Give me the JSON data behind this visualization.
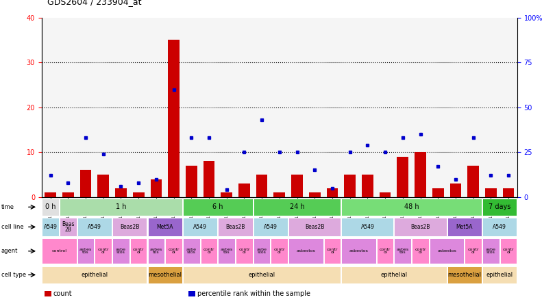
{
  "title": "GDS2604 / 233904_at",
  "samples": [
    "GSM139646",
    "GSM139660",
    "GSM139640",
    "GSM139647",
    "GSM139654",
    "GSM139661",
    "GSM139760",
    "GSM139669",
    "GSM139641",
    "GSM139648",
    "GSM139655",
    "GSM139663",
    "GSM139643",
    "GSM139653",
    "GSM139656",
    "GSM139657",
    "GSM139664",
    "GSM139644",
    "GSM139645",
    "GSM139652",
    "GSM139659",
    "GSM139666",
    "GSM139667",
    "GSM139668",
    "GSM139761",
    "GSM139642",
    "GSM139649"
  ],
  "counts": [
    1,
    1,
    6,
    5,
    2,
    1,
    4,
    35,
    7,
    8,
    1,
    3,
    5,
    1,
    5,
    1,
    2,
    5,
    5,
    1,
    9,
    10,
    2,
    3,
    7,
    2,
    2
  ],
  "percentiles": [
    12,
    8,
    33,
    24,
    6,
    8,
    10,
    60,
    33,
    33,
    4,
    25,
    43,
    25,
    25,
    15,
    5,
    25,
    29,
    25,
    33,
    35,
    17,
    10,
    33,
    12,
    12
  ],
  "bar_color": "#cc0000",
  "dot_color": "#0000cc",
  "time_spans": [
    {
      "text": "0 h",
      "start": 0,
      "end": 1,
      "color": "#e0e0e0"
    },
    {
      "text": "1 h",
      "start": 1,
      "end": 8,
      "color": "#aaddaa"
    },
    {
      "text": "6 h",
      "start": 8,
      "end": 12,
      "color": "#55cc55"
    },
    {
      "text": "24 h",
      "start": 12,
      "end": 17,
      "color": "#55cc55"
    },
    {
      "text": "48 h",
      "start": 17,
      "end": 25,
      "color": "#77dd77"
    },
    {
      "text": "7 days",
      "start": 25,
      "end": 27,
      "color": "#33bb33"
    }
  ],
  "cellline_spans": [
    {
      "text": "A549",
      "start": 0,
      "end": 1,
      "color": "#add8e6"
    },
    {
      "text": "Beas\n2B",
      "start": 1,
      "end": 2,
      "color": "#ddaadd"
    },
    {
      "text": "A549",
      "start": 2,
      "end": 4,
      "color": "#add8e6"
    },
    {
      "text": "Beas2B",
      "start": 4,
      "end": 6,
      "color": "#ddaadd"
    },
    {
      "text": "Met5A",
      "start": 6,
      "end": 8,
      "color": "#9966cc"
    },
    {
      "text": "A549",
      "start": 8,
      "end": 10,
      "color": "#add8e6"
    },
    {
      "text": "Beas2B",
      "start": 10,
      "end": 12,
      "color": "#ddaadd"
    },
    {
      "text": "A549",
      "start": 12,
      "end": 14,
      "color": "#add8e6"
    },
    {
      "text": "Beas2B",
      "start": 14,
      "end": 17,
      "color": "#ddaadd"
    },
    {
      "text": "A549",
      "start": 17,
      "end": 20,
      "color": "#add8e6"
    },
    {
      "text": "Beas2B",
      "start": 20,
      "end": 23,
      "color": "#ddaadd"
    },
    {
      "text": "Met5A",
      "start": 23,
      "end": 25,
      "color": "#9966cc"
    },
    {
      "text": "A549",
      "start": 25,
      "end": 27,
      "color": "#add8e6"
    }
  ],
  "agent_spans": [
    {
      "text": "control",
      "start": 0,
      "end": 2,
      "color": "#ff88cc"
    },
    {
      "text": "asbes\ntos",
      "start": 2,
      "end": 3,
      "color": "#dd88dd"
    },
    {
      "text": "contr\nol",
      "start": 3,
      "end": 4,
      "color": "#ff88cc"
    },
    {
      "text": "asbe\nstos",
      "start": 4,
      "end": 5,
      "color": "#dd88dd"
    },
    {
      "text": "contr\nol",
      "start": 5,
      "end": 6,
      "color": "#ff88cc"
    },
    {
      "text": "asbes\ntos",
      "start": 6,
      "end": 7,
      "color": "#dd88dd"
    },
    {
      "text": "contr\nol",
      "start": 7,
      "end": 8,
      "color": "#ff88cc"
    },
    {
      "text": "asbe\nstos",
      "start": 8,
      "end": 9,
      "color": "#dd88dd"
    },
    {
      "text": "contr\nol",
      "start": 9,
      "end": 10,
      "color": "#ff88cc"
    },
    {
      "text": "asbes\ntos",
      "start": 10,
      "end": 11,
      "color": "#dd88dd"
    },
    {
      "text": "contr\nol",
      "start": 11,
      "end": 12,
      "color": "#ff88cc"
    },
    {
      "text": "asbe\nstos",
      "start": 12,
      "end": 13,
      "color": "#dd88dd"
    },
    {
      "text": "contr\nol",
      "start": 13,
      "end": 14,
      "color": "#ff88cc"
    },
    {
      "text": "asbestos",
      "start": 14,
      "end": 16,
      "color": "#dd88dd"
    },
    {
      "text": "contr\nol",
      "start": 16,
      "end": 17,
      "color": "#ff88cc"
    },
    {
      "text": "asbestos",
      "start": 17,
      "end": 19,
      "color": "#dd88dd"
    },
    {
      "text": "contr\nol",
      "start": 19,
      "end": 20,
      "color": "#ff88cc"
    },
    {
      "text": "asbes\ntos",
      "start": 20,
      "end": 21,
      "color": "#dd88dd"
    },
    {
      "text": "contr\nol",
      "start": 21,
      "end": 22,
      "color": "#ff88cc"
    },
    {
      "text": "asbestos",
      "start": 22,
      "end": 24,
      "color": "#dd88dd"
    },
    {
      "text": "contr\nol",
      "start": 24,
      "end": 25,
      "color": "#ff88cc"
    },
    {
      "text": "asbe\nstos",
      "start": 25,
      "end": 26,
      "color": "#dd88dd"
    },
    {
      "text": "contr\nol",
      "start": 26,
      "end": 27,
      "color": "#ff88cc"
    }
  ],
  "celltype_spans": [
    {
      "text": "epithelial",
      "start": 0,
      "end": 6,
      "color": "#f5deb3"
    },
    {
      "text": "mesothelial",
      "start": 6,
      "end": 8,
      "color": "#daa040"
    },
    {
      "text": "epithelial",
      "start": 8,
      "end": 17,
      "color": "#f5deb3"
    },
    {
      "text": "epithelial",
      "start": 17,
      "end": 23,
      "color": "#f5deb3"
    },
    {
      "text": "mesothelial",
      "start": 23,
      "end": 25,
      "color": "#daa040"
    },
    {
      "text": "epithelial",
      "start": 25,
      "end": 27,
      "color": "#f5deb3"
    }
  ],
  "legend_items": [
    {
      "color": "#cc0000",
      "label": "count"
    },
    {
      "color": "#0000cc",
      "label": "percentile rank within the sample"
    }
  ],
  "row_labels": [
    "time",
    "cell line",
    "agent",
    "cell type"
  ]
}
